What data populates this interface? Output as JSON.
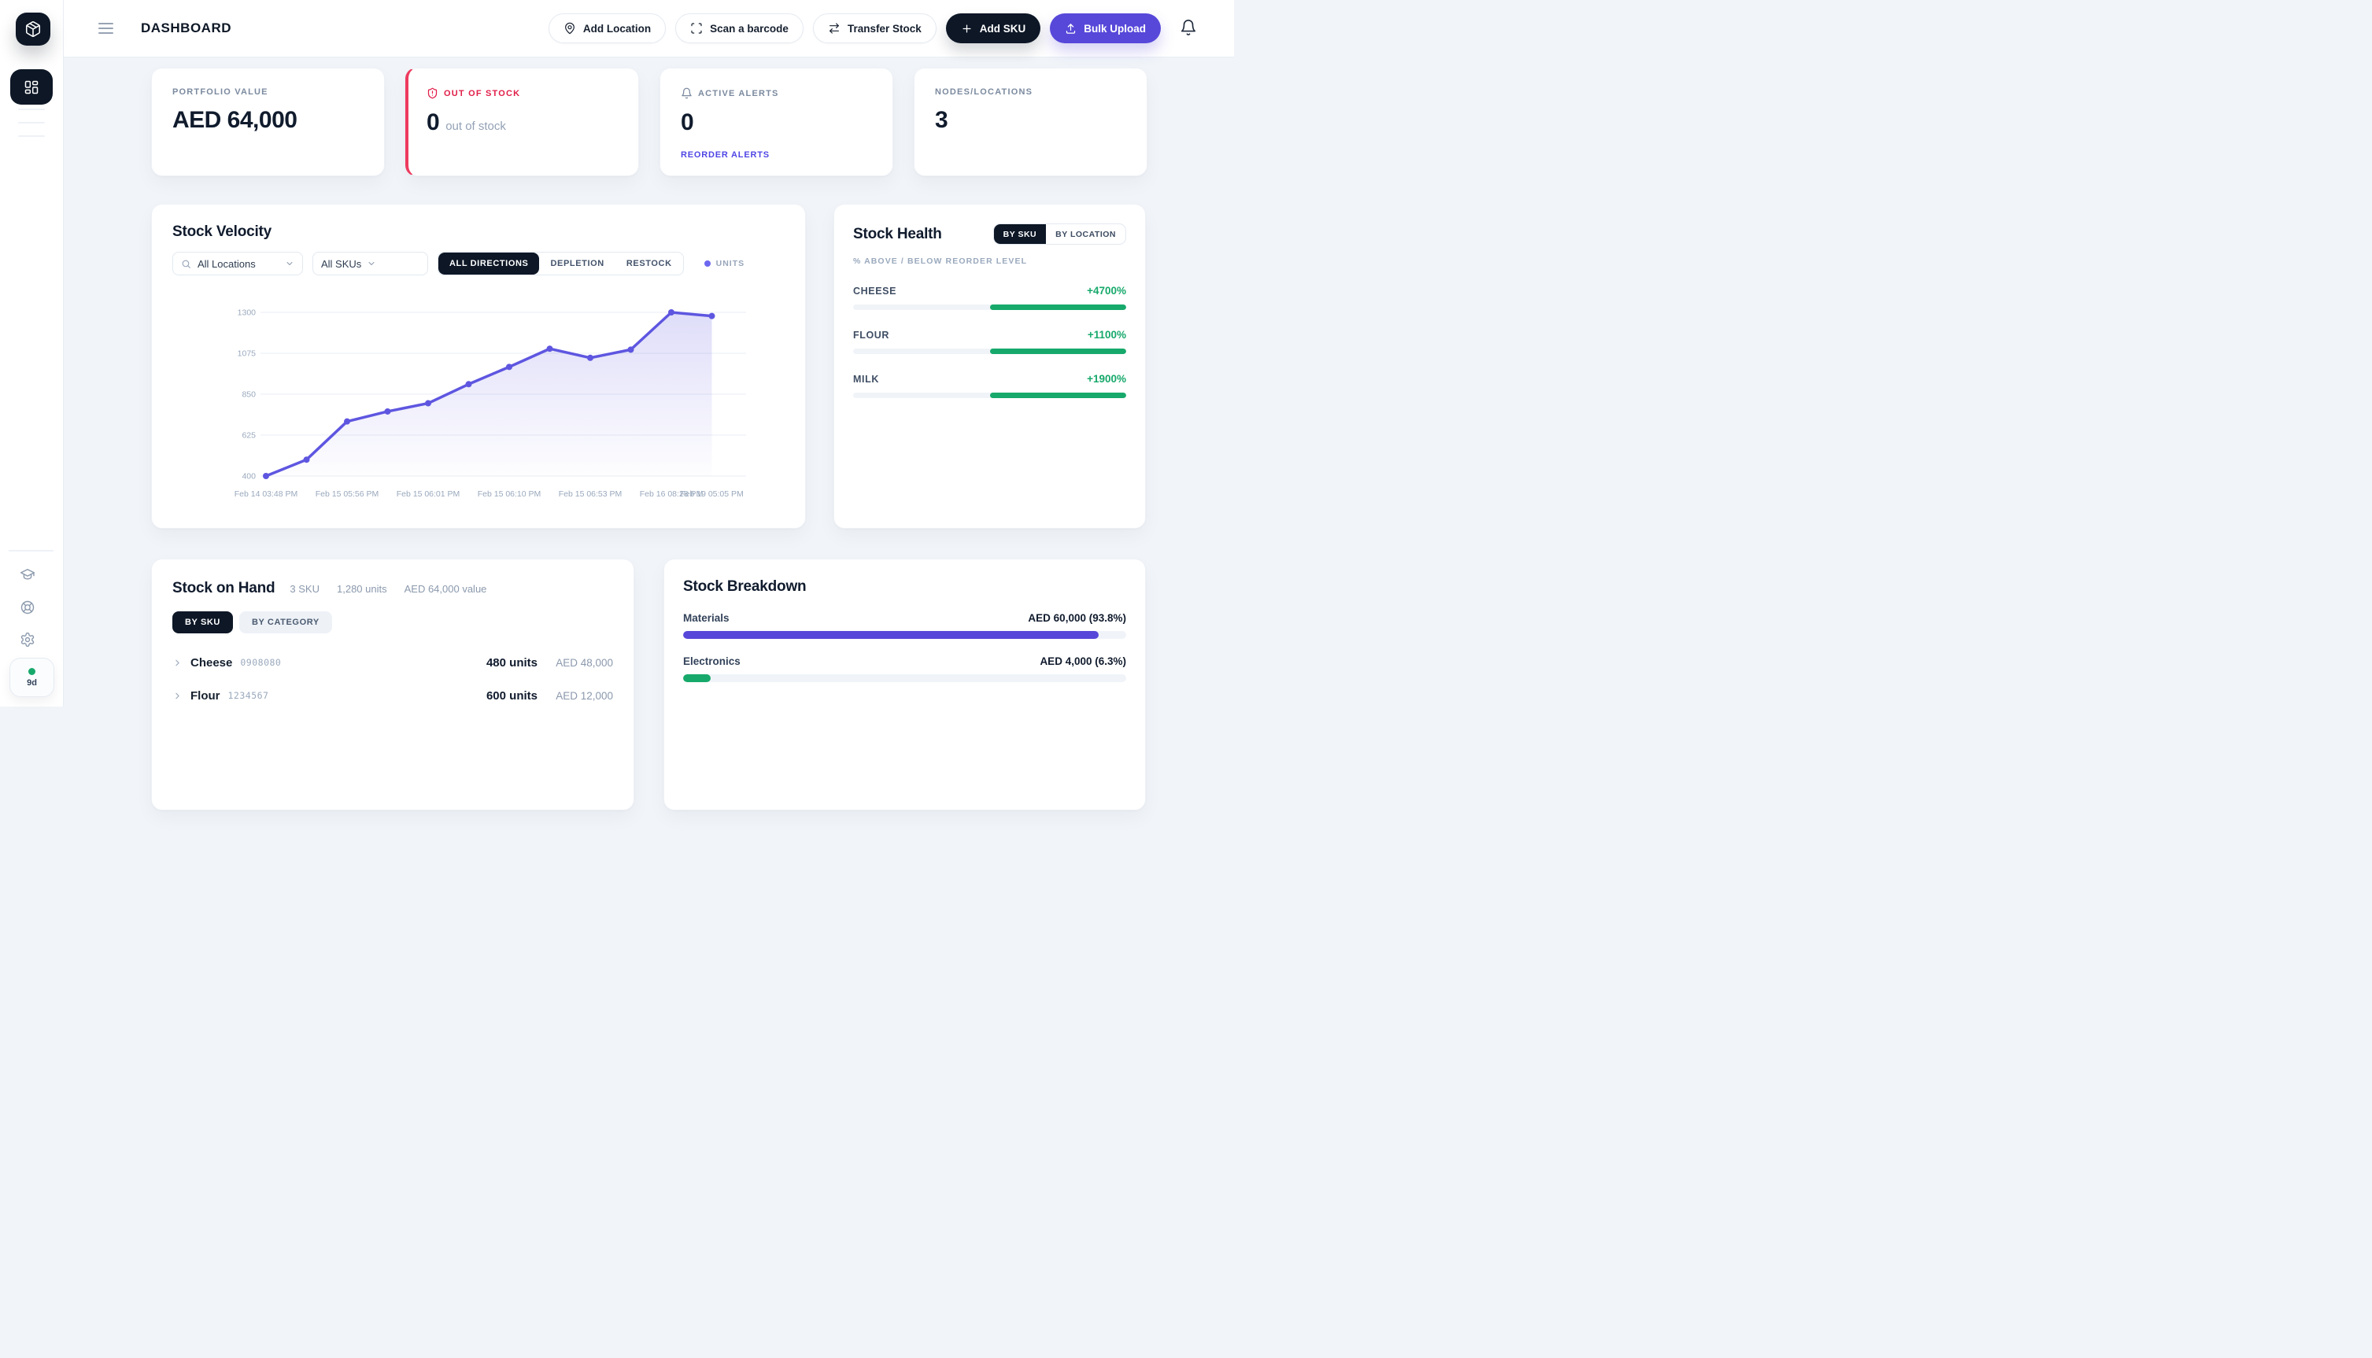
{
  "colors": {
    "accent": "#5748d9",
    "chart_line": "#5e56e0",
    "green": "#17a96b",
    "red": "#ee3a5f",
    "red_text": "#e11d48",
    "dark": "#0d1726",
    "link": "#4f46e5"
  },
  "sidebar": {
    "trial_badge": "9d"
  },
  "header": {
    "title": "DASHBOARD",
    "actions": [
      {
        "label": "Add Location"
      },
      {
        "label": "Scan a barcode"
      },
      {
        "label": "Transfer Stock"
      },
      {
        "label": "Add SKU"
      },
      {
        "label": "Bulk Upload"
      }
    ]
  },
  "kpis": {
    "portfolio": {
      "label": "PORTFOLIO VALUE",
      "value": "AED 64,000"
    },
    "out_of_stock": {
      "label": "OUT OF STOCK",
      "value": "0",
      "suffix": "out of stock"
    },
    "active_alerts": {
      "label": "ACTIVE ALERTS",
      "value": "0",
      "link": "REORDER ALERTS"
    },
    "nodes": {
      "label": "NODES/LOCATIONS",
      "value": "3"
    }
  },
  "stock_velocity": {
    "title": "Stock Velocity",
    "location_filter": "All Locations",
    "sku_filter": "All SKUs",
    "tabs": [
      "ALL DIRECTIONS",
      "DEPLETION",
      "RESTOCK"
    ],
    "active_tab": "ALL DIRECTIONS",
    "legend": "UNITS"
  },
  "chart_data": {
    "type": "area",
    "title": "Stock Velocity",
    "series": [
      {
        "name": "UNITS",
        "values": [
          400,
          490,
          700,
          755,
          800,
          905,
          1000,
          1100,
          1050,
          1095,
          1300,
          1280
        ]
      }
    ],
    "y_ticks": [
      400,
      625,
      850,
      1075,
      1300
    ],
    "ylim": [
      400,
      1300
    ],
    "x_tick_labels": [
      "Feb 14 03:48 PM",
      "Feb 15 05:56 PM",
      "Feb 15 06:01 PM",
      "Feb 15 06:10 PM",
      "Feb 15 06:53 PM",
      "Feb 16 08:28 PM",
      "Feb 19 05:05 PM"
    ],
    "x_tick_point_indices": [
      0,
      2,
      4,
      6,
      8,
      10,
      11
    ],
    "grid": "horizontal",
    "legend_position": "top-right"
  },
  "stock_health": {
    "title": "Stock Health",
    "toggle": [
      "BY SKU",
      "BY LOCATION"
    ],
    "active_toggle": "BY SKU",
    "subtitle": "% ABOVE / BELOW REORDER LEVEL",
    "bar_fill_start_pct": 50,
    "bar_fill_end_pct": 100,
    "rows": [
      {
        "name": "CHEESE",
        "value": "+4700%"
      },
      {
        "name": "FLOUR",
        "value": "+1100%"
      },
      {
        "name": "MILK",
        "value": "+1900%"
      }
    ]
  },
  "stock_on_hand": {
    "title": "Stock on Hand",
    "meta": [
      "3 SKU",
      "1,280 units",
      "AED 64,000 value"
    ],
    "tabs": [
      "BY SKU",
      "BY CATEGORY"
    ],
    "active_tab": "BY SKU",
    "rows": [
      {
        "name": "Cheese",
        "sku": "0908080",
        "units": "480 units",
        "value": "AED 48,000"
      },
      {
        "name": "Flour",
        "sku": "1234567",
        "units": "600 units",
        "value": "AED 12,000"
      }
    ]
  },
  "stock_breakdown": {
    "title": "Stock Breakdown",
    "rows": [
      {
        "name": "Materials",
        "value": "AED 60,000 (93.8%)",
        "pct": 93.8,
        "color": "#5748d9"
      },
      {
        "name": "Electronics",
        "value": "AED 4,000 (6.3%)",
        "pct": 6.3,
        "color": "#17a96b"
      }
    ]
  }
}
